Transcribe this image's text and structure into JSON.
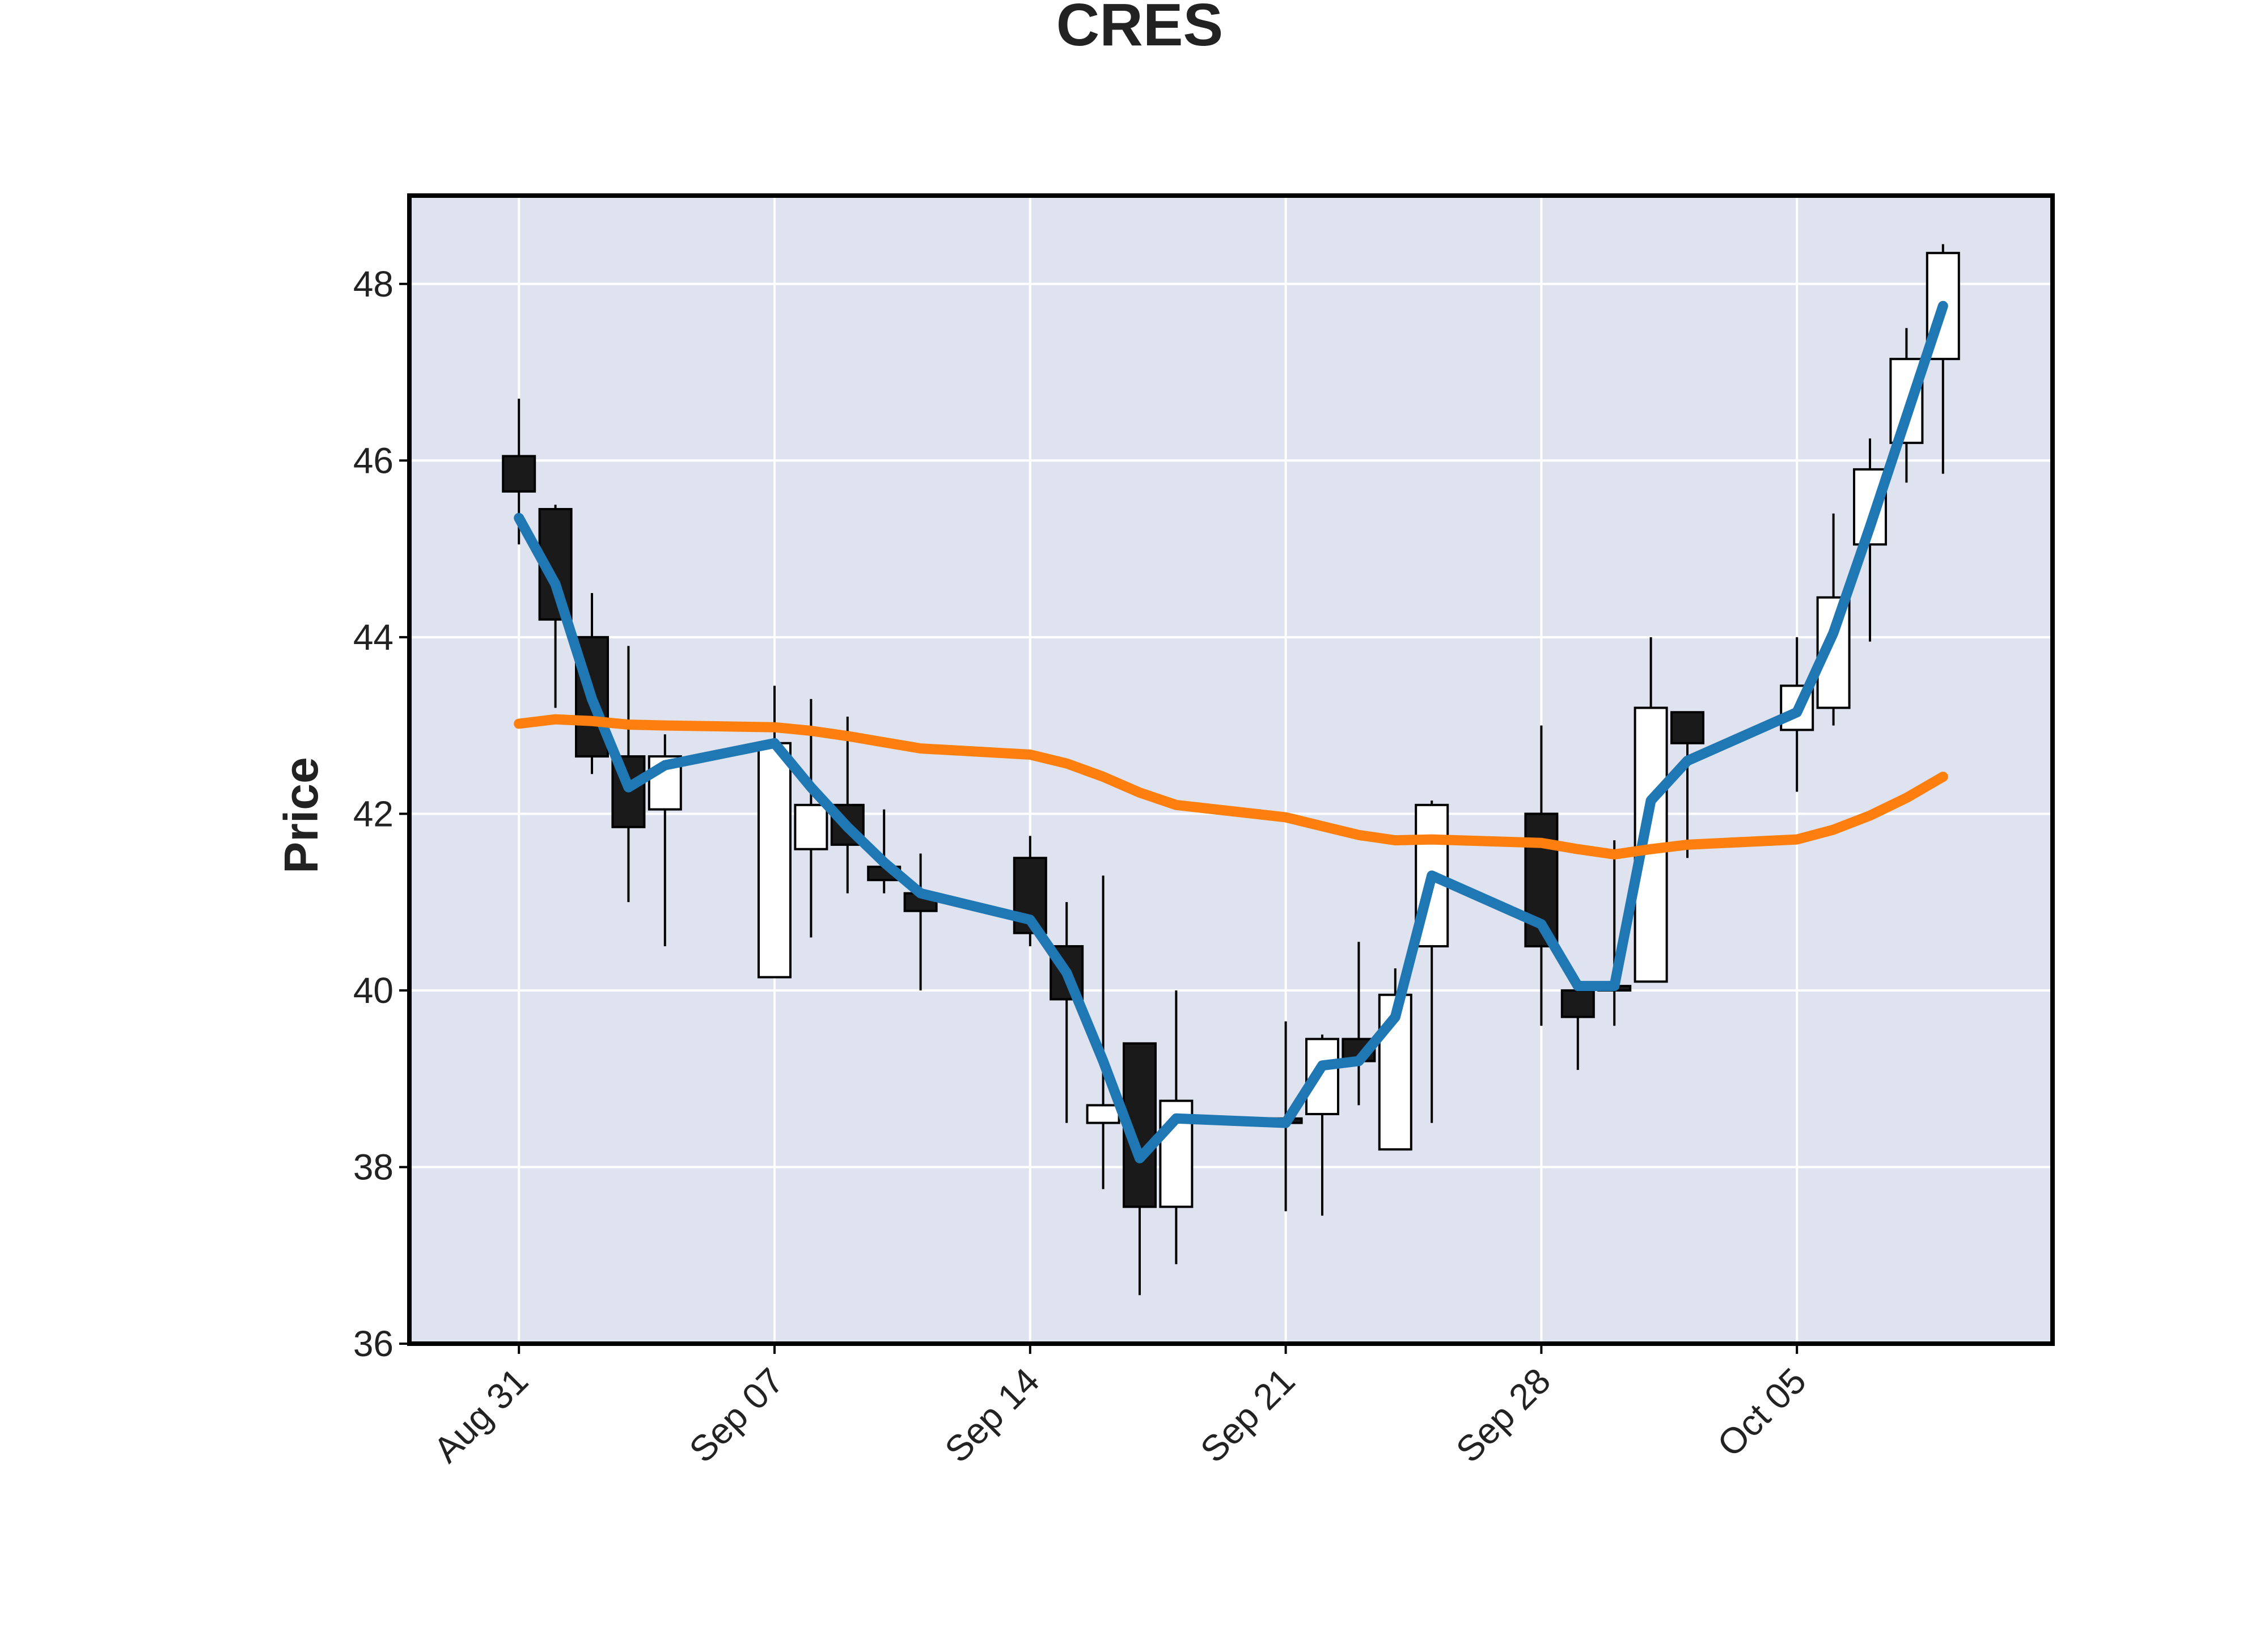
{
  "chart_data": {
    "type": "candlestick",
    "title": "CRES",
    "xlabel": "",
    "ylabel": "Price",
    "ylim": [
      36,
      49
    ],
    "y_ticks": [
      36,
      38,
      40,
      42,
      44,
      46,
      48
    ],
    "x_ticks": [
      {
        "label": "Aug 31",
        "date": "2020-08-31"
      },
      {
        "label": "Sep 07",
        "date": "2020-09-07"
      },
      {
        "label": "Sep 14",
        "date": "2020-09-14"
      },
      {
        "label": "Sep 21",
        "date": "2020-09-21"
      },
      {
        "label": "Sep 28",
        "date": "2020-09-28"
      },
      {
        "label": "Oct 05",
        "date": "2020-10-05"
      }
    ],
    "x_range": [
      "2020-08-28",
      "2020-10-12"
    ],
    "grid": true,
    "background": "#dfe3ef",
    "up_color": "#ffffff",
    "down_color": "#1a1a1a",
    "candles": [
      {
        "date": "2020-08-31",
        "open": 46.05,
        "high": 46.7,
        "low": 45.05,
        "close": 45.65
      },
      {
        "date": "2020-09-01",
        "open": 45.45,
        "high": 45.5,
        "low": 43.2,
        "close": 44.2
      },
      {
        "date": "2020-09-02",
        "open": 44.0,
        "high": 44.5,
        "low": 42.45,
        "close": 42.65
      },
      {
        "date": "2020-09-03",
        "open": 42.65,
        "high": 43.9,
        "low": 41.0,
        "close": 41.85
      },
      {
        "date": "2020-09-04",
        "open": 42.05,
        "high": 42.9,
        "low": 40.5,
        "close": 42.65
      },
      {
        "date": "2020-09-07",
        "open": 40.15,
        "high": 43.45,
        "low": 40.15,
        "close": 42.8
      },
      {
        "date": "2020-09-08",
        "open": 41.6,
        "high": 43.3,
        "low": 40.6,
        "close": 42.1
      },
      {
        "date": "2020-09-09",
        "open": 42.1,
        "high": 43.1,
        "low": 41.1,
        "close": 41.65
      },
      {
        "date": "2020-09-10",
        "open": 41.4,
        "high": 42.05,
        "low": 41.1,
        "close": 41.25
      },
      {
        "date": "2020-09-11",
        "open": 41.1,
        "high": 41.55,
        "low": 40.0,
        "close": 40.9
      },
      {
        "date": "2020-09-14",
        "open": 41.5,
        "high": 41.75,
        "low": 40.5,
        "close": 40.65
      },
      {
        "date": "2020-09-15",
        "open": 40.5,
        "high": 41.0,
        "low": 38.5,
        "close": 39.9
      },
      {
        "date": "2020-09-16",
        "open": 38.5,
        "high": 41.3,
        "low": 37.75,
        "close": 38.7
      },
      {
        "date": "2020-09-17",
        "open": 39.4,
        "high": 39.4,
        "low": 36.55,
        "close": 37.55
      },
      {
        "date": "2020-09-18",
        "open": 37.55,
        "high": 40.0,
        "low": 36.9,
        "close": 38.75
      },
      {
        "date": "2020-09-21",
        "open": 38.55,
        "high": 39.65,
        "low": 37.5,
        "close": 38.5
      },
      {
        "date": "2020-09-22",
        "open": 38.6,
        "high": 39.5,
        "low": 37.45,
        "close": 39.45
      },
      {
        "date": "2020-09-23",
        "open": 39.45,
        "high": 40.55,
        "low": 38.7,
        "close": 39.2
      },
      {
        "date": "2020-09-24",
        "open": 38.2,
        "high": 40.25,
        "low": 38.2,
        "close": 39.95
      },
      {
        "date": "2020-09-25",
        "open": 40.5,
        "high": 42.15,
        "low": 38.5,
        "close": 42.1
      },
      {
        "date": "2020-09-28",
        "open": 42.0,
        "high": 43.0,
        "low": 39.6,
        "close": 40.5
      },
      {
        "date": "2020-09-29",
        "open": 40.0,
        "high": 40.05,
        "low": 39.1,
        "close": 39.7
      },
      {
        "date": "2020-09-30",
        "open": 40.05,
        "high": 41.7,
        "low": 39.6,
        "close": 40.0
      },
      {
        "date": "2020-10-01",
        "open": 40.1,
        "high": 44.0,
        "low": 40.1,
        "close": 43.2
      },
      {
        "date": "2020-10-02",
        "open": 43.15,
        "high": 43.15,
        "low": 41.5,
        "close": 42.8
      },
      {
        "date": "2020-10-05",
        "open": 42.95,
        "high": 44.0,
        "low": 42.25,
        "close": 43.45
      },
      {
        "date": "2020-10-06",
        "open": 43.2,
        "high": 45.4,
        "low": 43.0,
        "close": 44.45
      },
      {
        "date": "2020-10-07",
        "open": 45.05,
        "high": 46.25,
        "low": 43.95,
        "close": 45.9
      },
      {
        "date": "2020-10-08",
        "open": 46.2,
        "high": 47.5,
        "low": 45.75,
        "close": 47.15
      },
      {
        "date": "2020-10-09",
        "open": 47.15,
        "high": 48.45,
        "low": 45.85,
        "close": 48.35
      }
    ],
    "series": [
      {
        "color": "#1f77b4",
        "points": [
          [
            "2020-08-31",
            45.35
          ],
          [
            "2020-09-01",
            44.6
          ],
          [
            "2020-09-02",
            43.3
          ],
          [
            "2020-09-03",
            42.3
          ],
          [
            "2020-09-04",
            42.55
          ],
          [
            "2020-09-07",
            42.8
          ],
          [
            "2020-09-08",
            42.3
          ],
          [
            "2020-09-09",
            41.85
          ],
          [
            "2020-09-10",
            41.45
          ],
          [
            "2020-09-11",
            41.1
          ],
          [
            "2020-09-14",
            40.8
          ],
          [
            "2020-09-15",
            40.2
          ],
          [
            "2020-09-16",
            39.2
          ],
          [
            "2020-09-17",
            38.1
          ],
          [
            "2020-09-18",
            38.55
          ],
          [
            "2020-09-21",
            38.5
          ],
          [
            "2020-09-22",
            39.15
          ],
          [
            "2020-09-23",
            39.2
          ],
          [
            "2020-09-24",
            39.7
          ],
          [
            "2020-09-25",
            41.3
          ],
          [
            "2020-09-28",
            40.75
          ],
          [
            "2020-09-29",
            40.05
          ],
          [
            "2020-09-30",
            40.05
          ],
          [
            "2020-10-01",
            42.15
          ],
          [
            "2020-10-02",
            42.6
          ],
          [
            "2020-10-05",
            43.15
          ],
          [
            "2020-10-06",
            44.05
          ],
          [
            "2020-10-07",
            45.25
          ],
          [
            "2020-10-08",
            46.5
          ],
          [
            "2020-10-09",
            47.75
          ]
        ]
      },
      {
        "color": "#ff7f0e",
        "points": [
          [
            "2020-08-31",
            43.02
          ],
          [
            "2020-09-01",
            43.07
          ],
          [
            "2020-09-02",
            43.05
          ],
          [
            "2020-09-03",
            43.01
          ],
          [
            "2020-09-04",
            43.0
          ],
          [
            "2020-09-07",
            42.98
          ],
          [
            "2020-09-08",
            42.94
          ],
          [
            "2020-09-09",
            42.88
          ],
          [
            "2020-09-10",
            42.81
          ],
          [
            "2020-09-11",
            42.74
          ],
          [
            "2020-09-14",
            42.67
          ],
          [
            "2020-09-15",
            42.57
          ],
          [
            "2020-09-16",
            42.42
          ],
          [
            "2020-09-17",
            42.24
          ],
          [
            "2020-09-18",
            42.1
          ],
          [
            "2020-09-21",
            41.96
          ],
          [
            "2020-09-22",
            41.86
          ],
          [
            "2020-09-23",
            41.76
          ],
          [
            "2020-09-24",
            41.7
          ],
          [
            "2020-09-25",
            41.71
          ],
          [
            "2020-09-28",
            41.67
          ],
          [
            "2020-09-29",
            41.6
          ],
          [
            "2020-09-30",
            41.54
          ],
          [
            "2020-10-01",
            41.6
          ],
          [
            "2020-10-02",
            41.65
          ],
          [
            "2020-10-05",
            41.71
          ],
          [
            "2020-10-06",
            41.82
          ],
          [
            "2020-10-07",
            41.98
          ],
          [
            "2020-10-08",
            42.18
          ],
          [
            "2020-10-09",
            42.42
          ]
        ]
      }
    ]
  }
}
